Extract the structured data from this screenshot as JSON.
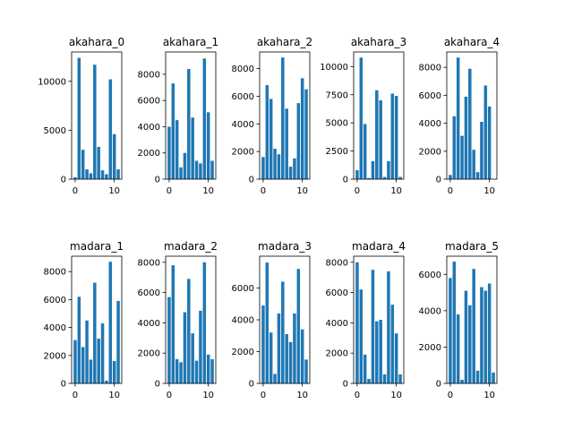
{
  "chart_data": [
    {
      "type": "bar",
      "title": "akahara_0",
      "x": [
        0,
        1,
        2,
        3,
        4,
        5,
        6,
        7,
        8,
        9,
        10,
        11
      ],
      "values": [
        200,
        12400,
        3000,
        1000,
        600,
        11700,
        3300,
        900,
        500,
        10200,
        4600,
        1000
      ],
      "xlim": [
        -0.9,
        11.9
      ],
      "ylim": [
        0,
        13000
      ],
      "xticks": [
        0,
        10
      ],
      "yticks": [
        0,
        5000,
        10000
      ],
      "color": "#1f77b4"
    },
    {
      "type": "bar",
      "title": "akahara_1",
      "x": [
        0,
        1,
        2,
        3,
        4,
        5,
        6,
        7,
        8,
        9,
        10,
        11
      ],
      "values": [
        4000,
        7300,
        4500,
        900,
        2000,
        8400,
        4700,
        1400,
        1200,
        9200,
        5100,
        1400
      ],
      "xlim": [
        -0.9,
        11.9
      ],
      "ylim": [
        0,
        9700
      ],
      "xticks": [
        0,
        10
      ],
      "yticks": [
        0,
        2000,
        4000,
        6000,
        8000
      ],
      "color": "#1f77b4"
    },
    {
      "type": "bar",
      "title": "akahara_2",
      "x": [
        0,
        1,
        2,
        3,
        4,
        5,
        6,
        7,
        8,
        9,
        10,
        11
      ],
      "values": [
        1600,
        6800,
        5800,
        2200,
        1800,
        8800,
        5100,
        900,
        1500,
        5500,
        7300,
        6500
      ],
      "xlim": [
        -0.9,
        11.9
      ],
      "ylim": [
        0,
        9200
      ],
      "xticks": [
        0,
        10
      ],
      "yticks": [
        0,
        2000,
        4000,
        6000,
        8000
      ],
      "color": "#1f77b4"
    },
    {
      "type": "bar",
      "title": "akahara_3",
      "x": [
        0,
        1,
        2,
        3,
        4,
        5,
        6,
        7,
        8,
        9,
        10,
        11
      ],
      "values": [
        800,
        10800,
        4900,
        100,
        1600,
        7900,
        7000,
        200,
        1600,
        7600,
        7400,
        200
      ],
      "xlim": [
        -0.9,
        11.9
      ],
      "ylim": [
        0,
        11300
      ],
      "xticks": [
        0,
        10
      ],
      "yticks": [
        0,
        2500,
        5000,
        7500,
        10000
      ],
      "color": "#1f77b4"
    },
    {
      "type": "bar",
      "title": "akahara_4",
      "x": [
        0,
        1,
        2,
        3,
        4,
        5,
        6,
        7,
        8,
        9,
        10,
        11
      ],
      "values": [
        300,
        4500,
        8700,
        3100,
        5900,
        7900,
        2100,
        500,
        4100,
        6700,
        5200,
        0
      ],
      "xlim": [
        -0.9,
        11.9
      ],
      "ylim": [
        0,
        9100
      ],
      "xticks": [
        0,
        10
      ],
      "yticks": [
        0,
        2000,
        4000,
        6000,
        8000
      ],
      "color": "#1f77b4"
    },
    {
      "type": "bar",
      "title": "madara_1",
      "x": [
        0,
        1,
        2,
        3,
        4,
        5,
        6,
        7,
        8,
        9,
        10,
        11
      ],
      "values": [
        3100,
        6200,
        2600,
        4500,
        1700,
        7200,
        3200,
        4300,
        200,
        8700,
        1600,
        5900
      ],
      "xlim": [
        -0.9,
        11.9
      ],
      "ylim": [
        0,
        9100
      ],
      "xticks": [
        0,
        10
      ],
      "yticks": [
        0,
        2000,
        4000,
        6000,
        8000
      ],
      "color": "#1f77b4"
    },
    {
      "type": "bar",
      "title": "madara_2",
      "x": [
        0,
        1,
        2,
        3,
        4,
        5,
        6,
        7,
        8,
        9,
        10,
        11
      ],
      "values": [
        5700,
        7800,
        1600,
        1400,
        4700,
        6900,
        3300,
        1500,
        4800,
        8000,
        1900,
        1600
      ],
      "xlim": [
        -0.9,
        11.9
      ],
      "ylim": [
        0,
        8400
      ],
      "xticks": [
        0,
        10
      ],
      "yticks": [
        0,
        2000,
        4000,
        6000,
        8000
      ],
      "color": "#1f77b4"
    },
    {
      "type": "bar",
      "title": "madara_3",
      "x": [
        0,
        1,
        2,
        3,
        4,
        5,
        6,
        7,
        8,
        9,
        10,
        11
      ],
      "values": [
        4900,
        7600,
        3200,
        600,
        4400,
        6400,
        3100,
        2600,
        4400,
        7200,
        3400,
        1500
      ],
      "xlim": [
        -0.9,
        11.9
      ],
      "ylim": [
        0,
        8000
      ],
      "xticks": [
        0,
        10
      ],
      "yticks": [
        0,
        2000,
        4000,
        6000
      ],
      "color": "#1f77b4"
    },
    {
      "type": "bar",
      "title": "madara_4",
      "x": [
        0,
        1,
        2,
        3,
        4,
        5,
        6,
        7,
        8,
        9,
        10,
        11
      ],
      "values": [
        8000,
        6200,
        1900,
        300,
        7500,
        4100,
        4200,
        600,
        7400,
        5200,
        3300,
        600
      ],
      "xlim": [
        -0.9,
        11.9
      ],
      "ylim": [
        0,
        8400
      ],
      "xticks": [
        0,
        10
      ],
      "yticks": [
        0,
        2000,
        4000,
        6000,
        8000
      ],
      "color": "#1f77b4"
    },
    {
      "type": "bar",
      "title": "madara_5",
      "x": [
        0,
        1,
        2,
        3,
        4,
        5,
        6,
        7,
        8,
        9,
        10,
        11
      ],
      "values": [
        5800,
        6700,
        3800,
        200,
        5100,
        4300,
        6300,
        700,
        5300,
        5100,
        5500,
        600
      ],
      "xlim": [
        -0.9,
        11.9
      ],
      "ylim": [
        0,
        7000
      ],
      "xticks": [
        0,
        10
      ],
      "yticks": [
        0,
        2000,
        4000,
        6000
      ],
      "color": "#1f77b4"
    }
  ]
}
